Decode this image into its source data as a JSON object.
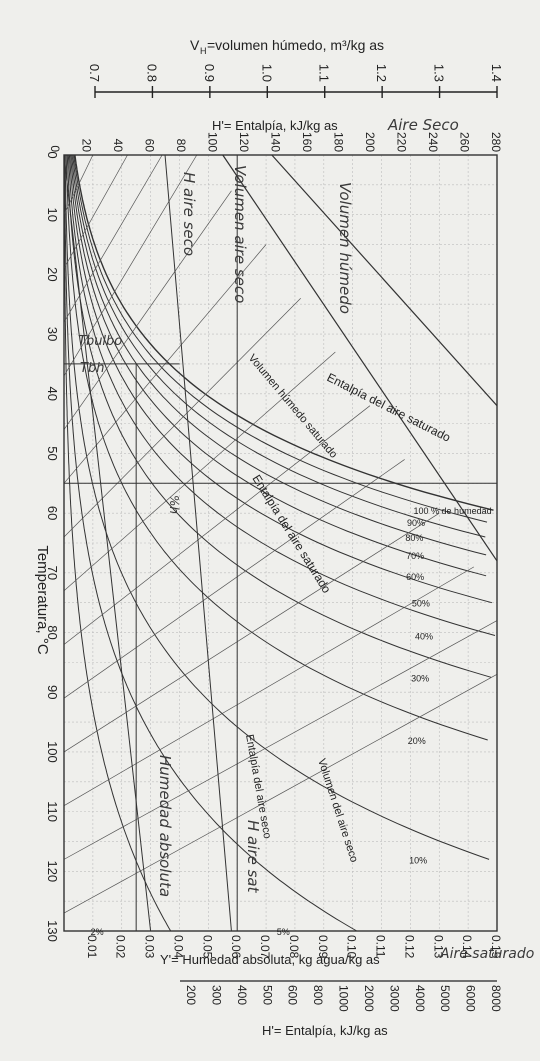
{
  "chart_data": {
    "type": "line",
    "title": "",
    "xlabel": "Temperatura, °C",
    "ylabel": "Y'= Humedad absoluta, kg agua/kg as",
    "xlim": [
      0,
      130
    ],
    "ylim": [
      0,
      0.15
    ],
    "x_ticks": [
      "0",
      "10",
      "20",
      "30",
      "40",
      "50",
      "60",
      "70",
      "80",
      "90",
      "100",
      "110",
      "120",
      "130"
    ],
    "y_ticks": [
      "0.01",
      "0.02",
      "0.03",
      "0.04",
      "0.05",
      "0.06",
      "0.07",
      "0.08",
      "0.09",
      "0.10",
      "0.11",
      "0.12",
      "0.13",
      "0.14",
      "0.15"
    ],
    "enthalpy_ticks_top": [
      "0",
      "20",
      "40",
      "60",
      "80",
      "100",
      "120",
      "140",
      "160",
      "180",
      "200",
      "220",
      "240",
      "260",
      "280"
    ],
    "enthalpy_label_top": "H'= Entalpía, kJ/kg as",
    "volume_label": "V",
    "volume_label_sub": "H",
    "volume_label_rest": "=volumen húmedo, m³/kg as",
    "volume_ticks": [
      "0.7",
      "0.8",
      "0.9",
      "1.0",
      "1.1",
      "1.2",
      "1.3",
      "1.4"
    ],
    "enthalpy_ticks_right": [
      "200",
      "300",
      "400",
      "500",
      "600",
      "800",
      "1000",
      "2000",
      "3000",
      "4000",
      "5000",
      "6000",
      "8000"
    ],
    "enthalpy_label_right": "H'= Entalpía, kJ/kg as",
    "series": [
      {
        "name": "100 % de humedad",
        "rh": 100
      },
      {
        "name": "90%",
        "rh": 90
      },
      {
        "name": "80%",
        "rh": 80
      },
      {
        "name": "70%",
        "rh": 70
      },
      {
        "name": "60%",
        "rh": 60
      },
      {
        "name": "50%",
        "rh": 50
      },
      {
        "name": "40%",
        "rh": 40
      },
      {
        "name": "30%",
        "rh": 30
      },
      {
        "name": "20%",
        "rh": 20
      },
      {
        "name": "10%",
        "rh": 10
      },
      {
        "name": "5%",
        "rh": 5
      },
      {
        "name": "2%",
        "rh": 2
      }
    ],
    "annotations": [
      "Entalpía del aire saturado",
      "Volumen húmedo saturado",
      "Entalpía del aire saturado",
      "Entalpía del aire seco",
      "Volumen del aire seco"
    ],
    "handwritten": [
      "Aire Seco",
      "Volumen húmedo",
      "Volumen aire seco",
      "H aire seco",
      "Tbulbo",
      "Tbh",
      "%h",
      "Humedad absoluta",
      "H aire sat",
      "Aire saturado"
    ]
  }
}
